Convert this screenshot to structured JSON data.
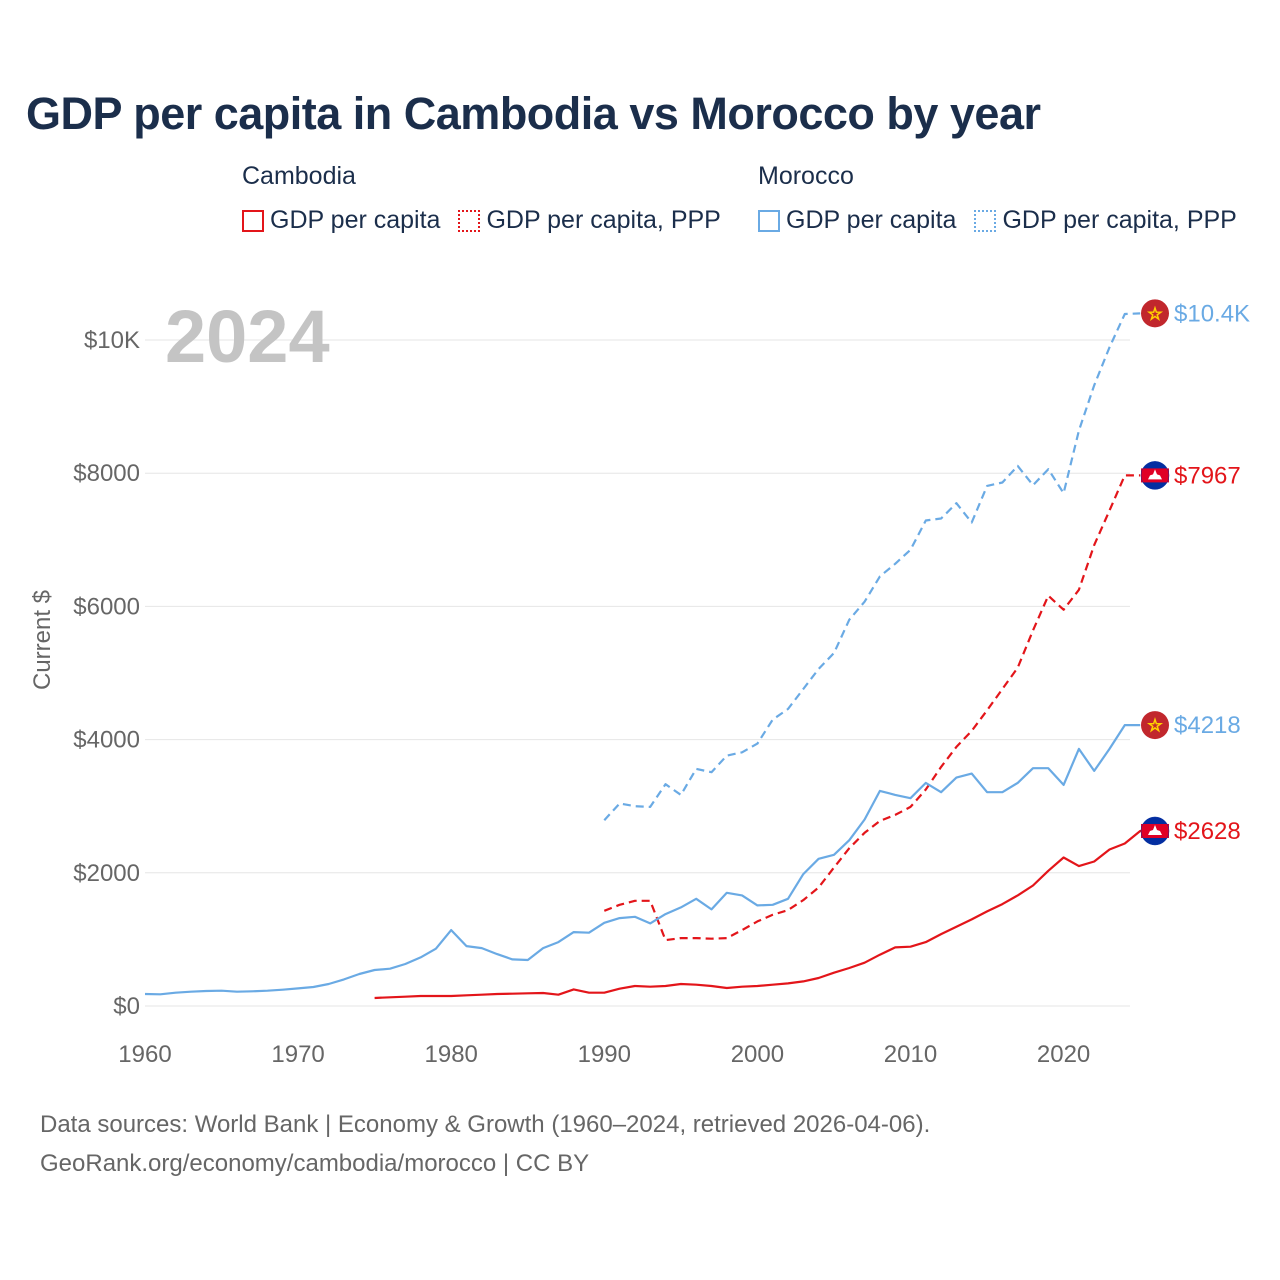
{
  "title": "GDP per capita in Cambodia vs Morocco by year",
  "legend": {
    "groups": [
      {
        "country": "Cambodia",
        "items": [
          {
            "label": "GDP per capita",
            "style": "solid",
            "color": "#e3151a"
          },
          {
            "label": "GDP per capita, PPP",
            "style": "dotted",
            "color": "#e3151a"
          }
        ]
      },
      {
        "country": "Morocco",
        "items": [
          {
            "label": "GDP per capita",
            "style": "solid",
            "color": "#6aaae4"
          },
          {
            "label": "GDP per capita, PPP",
            "style": "dotted",
            "color": "#6aaae4"
          }
        ]
      }
    ]
  },
  "source": {
    "line1": "Data sources: World Bank | Economy & Growth (1960–2024, retrieved 2026-04-06).",
    "line2": "GeoRank.org/economy/cambodia/morocco | CC BY"
  },
  "colors": {
    "cambodia": "#e3151a",
    "morocco": "#6aaae4",
    "text": "#1b2e4b",
    "axis": "#666666",
    "grid": "#e6e6e6",
    "year": "#c4c4c4"
  },
  "chart_data": {
    "type": "line",
    "year_label": "2024",
    "title": "GDP per capita in Cambodia vs Morocco by year",
    "xlabel": "",
    "ylabel": "Current $",
    "xlim": [
      1960,
      2024
    ],
    "ylim": [
      0,
      10800
    ],
    "xticks": [
      {
        "value": 1960,
        "label": "1960"
      },
      {
        "value": 1970,
        "label": "1970"
      },
      {
        "value": 1980,
        "label": "1980"
      },
      {
        "value": 1990,
        "label": "1990"
      },
      {
        "value": 2000,
        "label": "2000"
      },
      {
        "value": 2010,
        "label": "2010"
      },
      {
        "value": 2020,
        "label": "2020"
      }
    ],
    "yticks": [
      {
        "value": 0,
        "label": "$0"
      },
      {
        "value": 2000,
        "label": "$2000"
      },
      {
        "value": 4000,
        "label": "$4000"
      },
      {
        "value": 6000,
        "label": "$6000"
      },
      {
        "value": 8000,
        "label": "$8000"
      },
      {
        "value": 10000,
        "label": "$10K"
      }
    ],
    "series": [
      {
        "name": "Morocco GDP per capita, PPP",
        "country": "Morocco",
        "dashed": true,
        "color": "#6aaae4",
        "end_label": "$10.4K",
        "flag": "morocco",
        "start": 1990,
        "values": [
          2790,
          3040,
          3000,
          2990,
          3330,
          3170,
          3560,
          3510,
          3760,
          3810,
          3940,
          4300,
          4460,
          4760,
          5060,
          5300,
          5800,
          6070,
          6450,
          6640,
          6850,
          7290,
          7320,
          7550,
          7260,
          7810,
          7860,
          8110,
          7820,
          8060,
          7700,
          8640,
          9320,
          9890,
          10390,
          10400
        ]
      },
      {
        "name": "Cambodia GDP per capita, PPP",
        "country": "Cambodia",
        "dashed": true,
        "color": "#e3151a",
        "end_label": "$7967",
        "flag": "cambodia",
        "start": 1990,
        "values": [
          1430,
          1520,
          1580,
          1580,
          990,
          1020,
          1020,
          1010,
          1020,
          1140,
          1270,
          1370,
          1440,
          1590,
          1780,
          2080,
          2370,
          2600,
          2780,
          2870,
          2990,
          3250,
          3590,
          3890,
          4130,
          4440,
          4760,
          5080,
          5640,
          6160,
          5950,
          6250,
          6920,
          7440,
          7967,
          7967
        ]
      },
      {
        "name": "Morocco GDP per capita",
        "country": "Morocco",
        "dashed": false,
        "color": "#6aaae4",
        "end_label": "$4218",
        "flag": "morocco",
        "start": 1960,
        "values": [
          180,
          175,
          200,
          215,
          225,
          230,
          215,
          220,
          230,
          245,
          265,
          285,
          330,
          400,
          480,
          540,
          560,
          630,
          730,
          860,
          1140,
          900,
          870,
          780,
          700,
          690,
          870,
          960,
          1110,
          1100,
          1250,
          1320,
          1340,
          1240,
          1380,
          1480,
          1610,
          1450,
          1700,
          1660,
          1510,
          1520,
          1610,
          1980,
          2210,
          2270,
          2490,
          2800,
          3230,
          3170,
          3120,
          3350,
          3210,
          3430,
          3490,
          3210,
          3210,
          3350,
          3570,
          3570,
          3320,
          3860,
          3530,
          3860,
          4218,
          4218
        ]
      },
      {
        "name": "Cambodia GDP per capita",
        "country": "Cambodia",
        "dashed": false,
        "color": "#e3151a",
        "end_label": "$2628",
        "flag": "cambodia",
        "start": 1975,
        "values": [
          120,
          130,
          140,
          150,
          150,
          150,
          160,
          170,
          180,
          185,
          190,
          195,
          170,
          250,
          200,
          200,
          260,
          300,
          290,
          300,
          330,
          320,
          300,
          270,
          290,
          300,
          320,
          340,
          370,
          420,
          500,
          570,
          650,
          770,
          880,
          890,
          960,
          1080,
          1190,
          1300,
          1420,
          1530,
          1660,
          1810,
          2030,
          2230,
          2100,
          2170,
          2350,
          2440,
          2628,
          2628
        ]
      }
    ]
  }
}
